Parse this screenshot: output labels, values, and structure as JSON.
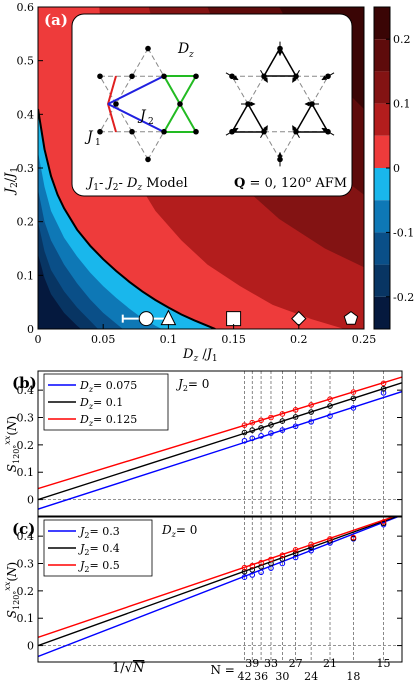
{
  "chart_data": [
    {
      "panel": "(a)",
      "type": "heatmap",
      "xlabel": "D_z / J_1",
      "ylabel": "J_2 / J_1",
      "xlim": [
        0,
        0.25
      ],
      "ylim": [
        0,
        0.6
      ],
      "xticks": [
        "0",
        "0.05",
        "0.1",
        "0.15",
        "0.2",
        "0.25"
      ],
      "yticks": [
        "0",
        "0.1",
        "0.2",
        "0.3",
        "0.4",
        "0.5",
        "0.6"
      ],
      "colorbar": {
        "ticks": [
          "0.2",
          "0.1",
          "0",
          "-0.1",
          "-0.2"
        ],
        "tick_values": [
          0.2,
          0.1,
          0,
          -0.1,
          -0.2
        ],
        "range": [
          -0.25,
          0.25
        ],
        "levels": [
          {
            "from": 0.2,
            "to": 0.25,
            "color": "#3a0505"
          },
          {
            "from": 0.15,
            "to": 0.2,
            "color": "#5e0b0b"
          },
          {
            "from": 0.1,
            "to": 0.15,
            "color": "#831313"
          },
          {
            "from": 0.05,
            "to": 0.1,
            "color": "#b31d1d"
          },
          {
            "from": 0.0,
            "to": 0.05,
            "color": "#ee3b3b"
          },
          {
            "from": -0.05,
            "to": 0.0,
            "color": "#19b7ec"
          },
          {
            "from": -0.1,
            "to": -0.05,
            "color": "#0e78b6"
          },
          {
            "from": -0.15,
            "to": -0.1,
            "color": "#0a4f88"
          },
          {
            "from": -0.2,
            "to": -0.15,
            "color": "#083563"
          },
          {
            "from": -0.25,
            "to": -0.2,
            "color": "#05193e"
          }
        ]
      },
      "contours": [
        {
          "level": 0.0,
          "points": [
            [
              0.0,
              0.41
            ],
            [
              0.005,
              0.335
            ],
            [
              0.01,
              0.285
            ],
            [
              0.015,
              0.25
            ],
            [
              0.02,
              0.225
            ],
            [
              0.03,
              0.185
            ],
            [
              0.04,
              0.155
            ],
            [
              0.05,
              0.13
            ],
            [
              0.06,
              0.108
            ],
            [
              0.07,
              0.088
            ],
            [
              0.08,
              0.07
            ],
            [
              0.09,
              0.054
            ],
            [
              0.1,
              0.04
            ],
            [
              0.11,
              0.027
            ],
            [
              0.12,
              0.016
            ],
            [
              0.13,
              0.006
            ],
            [
              0.136,
              0.0
            ]
          ]
        },
        {
          "level": 0.05,
          "points": [
            [
              0.047,
              0.6
            ],
            [
              0.05,
              0.5
            ],
            [
              0.055,
              0.42
            ],
            [
              0.063,
              0.35
            ],
            [
              0.075,
              0.28
            ],
            [
              0.09,
              0.22
            ],
            [
              0.11,
              0.165
            ],
            [
              0.13,
              0.12
            ],
            [
              0.155,
              0.08
            ],
            [
              0.18,
              0.045
            ],
            [
              0.21,
              0.018
            ],
            [
              0.235,
              0.0
            ]
          ]
        },
        {
          "level": 0.1,
          "points": [
            [
              0.085,
              0.6
            ],
            [
              0.095,
              0.5
            ],
            [
              0.11,
              0.42
            ],
            [
              0.13,
              0.34
            ],
            [
              0.155,
              0.27
            ],
            [
              0.185,
              0.205
            ],
            [
              0.22,
              0.15
            ],
            [
              0.25,
              0.115
            ]
          ]
        },
        {
          "level": 0.15,
          "points": [
            [
              0.13,
              0.6
            ],
            [
              0.145,
              0.51
            ],
            [
              0.165,
              0.44
            ],
            [
              0.19,
              0.37
            ],
            [
              0.22,
              0.305
            ],
            [
              0.25,
              0.25
            ]
          ]
        },
        {
          "level": 0.2,
          "points": [
            [
              0.185,
              0.6
            ],
            [
              0.2,
              0.535
            ],
            [
              0.225,
              0.47
            ],
            [
              0.25,
              0.41
            ]
          ]
        },
        {
          "level": -0.05,
          "points": [
            [
              0.0,
              0.33
            ],
            [
              0.005,
              0.265
            ],
            [
              0.01,
              0.22
            ],
            [
              0.02,
              0.17
            ],
            [
              0.03,
              0.135
            ],
            [
              0.04,
              0.105
            ],
            [
              0.05,
              0.08
            ],
            [
              0.06,
              0.058
            ],
            [
              0.07,
              0.038
            ],
            [
              0.08,
              0.02
            ],
            [
              0.09,
              0.006
            ],
            [
              0.095,
              0.0
            ]
          ]
        },
        {
          "level": -0.1,
          "points": [
            [
              0.0,
              0.26
            ],
            [
              0.005,
              0.2
            ],
            [
              0.01,
              0.165
            ],
            [
              0.02,
              0.12
            ],
            [
              0.03,
              0.085
            ],
            [
              0.04,
              0.055
            ],
            [
              0.05,
              0.03
            ],
            [
              0.06,
              0.01
            ],
            [
              0.065,
              0.0
            ]
          ]
        },
        {
          "level": -0.15,
          "points": [
            [
              0.0,
              0.2
            ],
            [
              0.005,
              0.145
            ],
            [
              0.01,
              0.11
            ],
            [
              0.02,
              0.07
            ],
            [
              0.03,
              0.04
            ],
            [
              0.04,
              0.015
            ],
            [
              0.046,
              0.0
            ]
          ]
        },
        {
          "level": -0.2,
          "points": [
            [
              0.0,
              0.14
            ],
            [
              0.005,
              0.095
            ],
            [
              0.01,
              0.065
            ],
            [
              0.02,
              0.03
            ],
            [
              0.03,
              0.006
            ],
            [
              0.033,
              0.0
            ]
          ]
        }
      ],
      "markers": [
        {
          "shape": "circle",
          "x": 0.083,
          "y": 0.01,
          "xerr": [
            0.065,
            0.1
          ]
        },
        {
          "shape": "triangle",
          "x": 0.1,
          "y": 0.01
        },
        {
          "shape": "square",
          "x": 0.15,
          "y": 0.01
        },
        {
          "shape": "diamond",
          "x": 0.2,
          "y": 0.01
        },
        {
          "shape": "pentagon",
          "x": 0.24,
          "y": 0.01
        }
      ],
      "inset": {
        "model_label": "J_1- J_2- D_z Model",
        "state_label": "Q = 0, 120° AFM",
        "bond_labels": [
          "D_z",
          "J_2",
          "J_1"
        ]
      }
    },
    {
      "panel": "(b)",
      "type": "line",
      "xlabel": "1/√N",
      "ylabel": "S_120°^xx(N)",
      "ylim": [
        -0.06,
        0.47
      ],
      "yticks": [
        "0",
        "0.1",
        "0.2",
        "0.3",
        "0.4"
      ],
      "annotation": "J_2 = 0",
      "legend_placement": "top-left",
      "series": [
        {
          "name": "D_z = 0.075",
          "color": "#0000ff",
          "intercept": -0.035,
          "slope": 1.58,
          "x": [
            0.1543,
            0.1601,
            0.1667,
            0.1741,
            0.1826,
            0.1925,
            0.2041,
            0.2182,
            0.2357,
            0.2582
          ],
          "y": [
            0.215,
            0.224,
            0.233,
            0.243,
            0.254,
            0.268,
            0.284,
            0.305,
            0.335,
            0.39
          ]
        },
        {
          "name": "D_z = 0.1",
          "color": "#000000",
          "intercept": 0.0,
          "slope": 1.57,
          "x": [
            0.1543,
            0.1601,
            0.1667,
            0.1741,
            0.1826,
            0.1925,
            0.2041,
            0.2182,
            0.2357,
            0.2582
          ],
          "y": [
            0.245,
            0.254,
            0.262,
            0.273,
            0.287,
            0.302,
            0.32,
            0.342,
            0.37,
            0.405
          ]
        },
        {
          "name": "D_z = 0.125",
          "color": "#ff0000",
          "intercept": 0.04,
          "slope": 1.5,
          "x": [
            0.1543,
            0.1601,
            0.1667,
            0.1741,
            0.1826,
            0.1925,
            0.2041,
            0.2182,
            0.2357,
            0.2582
          ],
          "y": [
            0.272,
            0.281,
            0.29,
            0.3,
            0.313,
            0.328,
            0.346,
            0.367,
            0.393,
            0.425
          ]
        }
      ]
    },
    {
      "panel": "(c)",
      "type": "line",
      "xlabel": "1/√N",
      "ylabel": "S_120°^xx(N)",
      "ylim": [
        -0.06,
        0.47
      ],
      "yticks": [
        "0",
        "0.1",
        "0.2",
        "0.3",
        "0.4"
      ],
      "annotation": "D_z = 0",
      "legend_placement": "top-left",
      "series": [
        {
          "name": "J_2 = 0.3",
          "color": "#0000ff",
          "intercept": -0.04,
          "slope": 1.9,
          "x": [
            0.1543,
            0.1601,
            0.1667,
            0.1741,
            0.1826,
            0.1925,
            0.2041,
            0.2182,
            0.2357,
            0.2582
          ],
          "y": [
            0.25,
            0.258,
            0.268,
            0.283,
            0.3,
            0.322,
            0.347,
            0.375,
            0.39,
            0.442
          ]
        },
        {
          "name": "J_2 = 0.4",
          "color": "#000000",
          "intercept": 0.0,
          "slope": 1.76,
          "x": [
            0.1543,
            0.1601,
            0.1667,
            0.1741,
            0.1826,
            0.1925,
            0.2041,
            0.2182,
            0.2357,
            0.2582
          ],
          "y": [
            0.27,
            0.277,
            0.288,
            0.3,
            0.317,
            0.337,
            0.359,
            0.383,
            0.392,
            0.447
          ]
        },
        {
          "name": "J_2 = 0.5",
          "color": "#ff0000",
          "intercept": 0.03,
          "slope": 1.66,
          "x": [
            0.1543,
            0.1601,
            0.1667,
            0.1741,
            0.1826,
            0.1925,
            0.2041,
            0.2182,
            0.2357,
            0.2582
          ],
          "y": [
            0.285,
            0.292,
            0.303,
            0.315,
            0.33,
            0.35,
            0.37,
            0.39,
            0.395,
            0.452
          ]
        }
      ]
    }
  ],
  "n_axis": {
    "label": "N =",
    "values_top": [
      "39",
      "33",
      "27",
      "21",
      "15"
    ],
    "values_bottom": [
      "42",
      "36",
      "30",
      "24",
      "18"
    ],
    "n_values": [
      42,
      39,
      36,
      33,
      30,
      27,
      24,
      21,
      18,
      15
    ]
  }
}
